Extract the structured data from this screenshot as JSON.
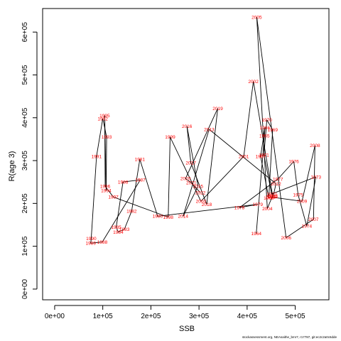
{
  "footer": "stockassessment.org, NEAsaithe_bmr7, r17787, git:ec2c2a0c6dde",
  "chart_data": {
    "type": "scatter",
    "connected": true,
    "xlabel": "SSB",
    "ylabel": "R(age 3)",
    "xlim": [
      -25000,
      570000
    ],
    "ylim": [
      -25000,
      655000
    ],
    "xticks": [
      0,
      100000,
      200000,
      300000,
      400000,
      500000
    ],
    "xtick_labels": [
      "0e+00",
      "1e+05",
      "2e+05",
      "3e+05",
      "4e+05",
      "5e+05"
    ],
    "yticks": [
      0,
      100000,
      200000,
      300000,
      400000,
      500000,
      600000
    ],
    "ytick_labels": [
      "0e+00",
      "1e+05",
      "2e+05",
      "3e+05",
      "4e+05",
      "5e+05",
      "6e+05"
    ],
    "point_color": "#ff0000",
    "line_color": "#000000",
    "points": [
      {
        "year": "1964",
        "x": 419000,
        "y": 130000
      },
      {
        "year": "1965",
        "x": 436000,
        "y": 358000
      },
      {
        "year": "1966",
        "x": 437000,
        "y": 377000
      },
      {
        "year": "1967",
        "x": 428000,
        "y": 310000
      },
      {
        "year": "1968",
        "x": 445000,
        "y": 213000
      },
      {
        "year": "1969",
        "x": 453000,
        "y": 372000
      },
      {
        "year": "1970",
        "x": 441000,
        "y": 395000
      },
      {
        "year": "1971",
        "x": 435000,
        "y": 313000
      },
      {
        "year": "1972",
        "x": 451000,
        "y": 222000
      },
      {
        "year": "1973",
        "x": 543000,
        "y": 262000
      },
      {
        "year": "1974",
        "x": 524000,
        "y": 147000
      },
      {
        "year": "1975",
        "x": 506000,
        "y": 220000
      },
      {
        "year": "1976",
        "x": 497000,
        "y": 298000
      },
      {
        "year": "1977",
        "x": 464000,
        "y": 257000
      },
      {
        "year": "1978",
        "x": 384000,
        "y": 190000
      },
      {
        "year": "1979",
        "x": 422000,
        "y": 198000
      },
      {
        "year": "1980",
        "x": 214000,
        "y": 170000
      },
      {
        "year": "1981",
        "x": 177000,
        "y": 303000
      },
      {
        "year": "1982",
        "x": 160000,
        "y": 182000
      },
      {
        "year": "1983",
        "x": 145000,
        "y": 140000
      },
      {
        "year": "1984",
        "x": 132000,
        "y": 133000
      },
      {
        "year": "1985",
        "x": 128000,
        "y": 145000
      },
      {
        "year": "1986",
        "x": 142000,
        "y": 250000
      },
      {
        "year": "1987",
        "x": 178000,
        "y": 255000
      },
      {
        "year": "1988",
        "x": 99000,
        "y": 110000
      },
      {
        "year": "1989",
        "x": 75000,
        "y": 107000
      },
      {
        "year": "1990",
        "x": 76000,
        "y": 118000
      },
      {
        "year": "1991",
        "x": 87000,
        "y": 310000
      },
      {
        "year": "1992",
        "x": 100000,
        "y": 398000
      },
      {
        "year": "1993",
        "x": 108000,
        "y": 355000
      },
      {
        "year": "1994",
        "x": 107000,
        "y": 230000
      },
      {
        "year": "1995",
        "x": 104000,
        "y": 405000
      },
      {
        "year": "1996",
        "x": 105000,
        "y": 240000
      },
      {
        "year": "1997",
        "x": 122000,
        "y": 215000
      },
      {
        "year": "1998",
        "x": 236000,
        "y": 168000
      },
      {
        "year": "1999",
        "x": 240000,
        "y": 355000
      },
      {
        "year": "2000",
        "x": 304000,
        "y": 205000
      },
      {
        "year": "2001",
        "x": 393000,
        "y": 310000
      },
      {
        "year": "2002",
        "x": 413000,
        "y": 485000
      },
      {
        "year": "2003",
        "x": 453000,
        "y": 218000
      },
      {
        "year": "2004",
        "x": 442000,
        "y": 188000
      },
      {
        "year": "2005",
        "x": 420000,
        "y": 635000
      },
      {
        "year": "2006",
        "x": 481000,
        "y": 120000
      },
      {
        "year": "2007",
        "x": 538000,
        "y": 163000
      },
      {
        "year": "2008",
        "x": 541000,
        "y": 335000
      },
      {
        "year": "2009",
        "x": 514000,
        "y": 205000
      },
      {
        "year": "2010",
        "x": 449000,
        "y": 215000
      },
      {
        "year": "2011",
        "x": 454000,
        "y": 216000
      },
      {
        "year": "2012",
        "x": 460000,
        "y": 246000
      },
      {
        "year": "2013",
        "x": 321000,
        "y": 373000
      },
      {
        "year": "2014",
        "x": 267000,
        "y": 170000
      },
      {
        "year": "2015",
        "x": 298000,
        "y": 240000
      },
      {
        "year": "2016",
        "x": 275000,
        "y": 380000
      },
      {
        "year": "2017",
        "x": 283000,
        "y": 295000
      },
      {
        "year": "2018",
        "x": 316000,
        "y": 198000
      },
      {
        "year": "2019",
        "x": 339000,
        "y": 422000
      },
      {
        "year": "2020",
        "x": 272000,
        "y": 258000
      },
      {
        "year": "2021",
        "x": 284000,
        "y": 248000
      },
      {
        "year": "2022",
        "x": 303000,
        "y": 225000
      }
    ]
  }
}
